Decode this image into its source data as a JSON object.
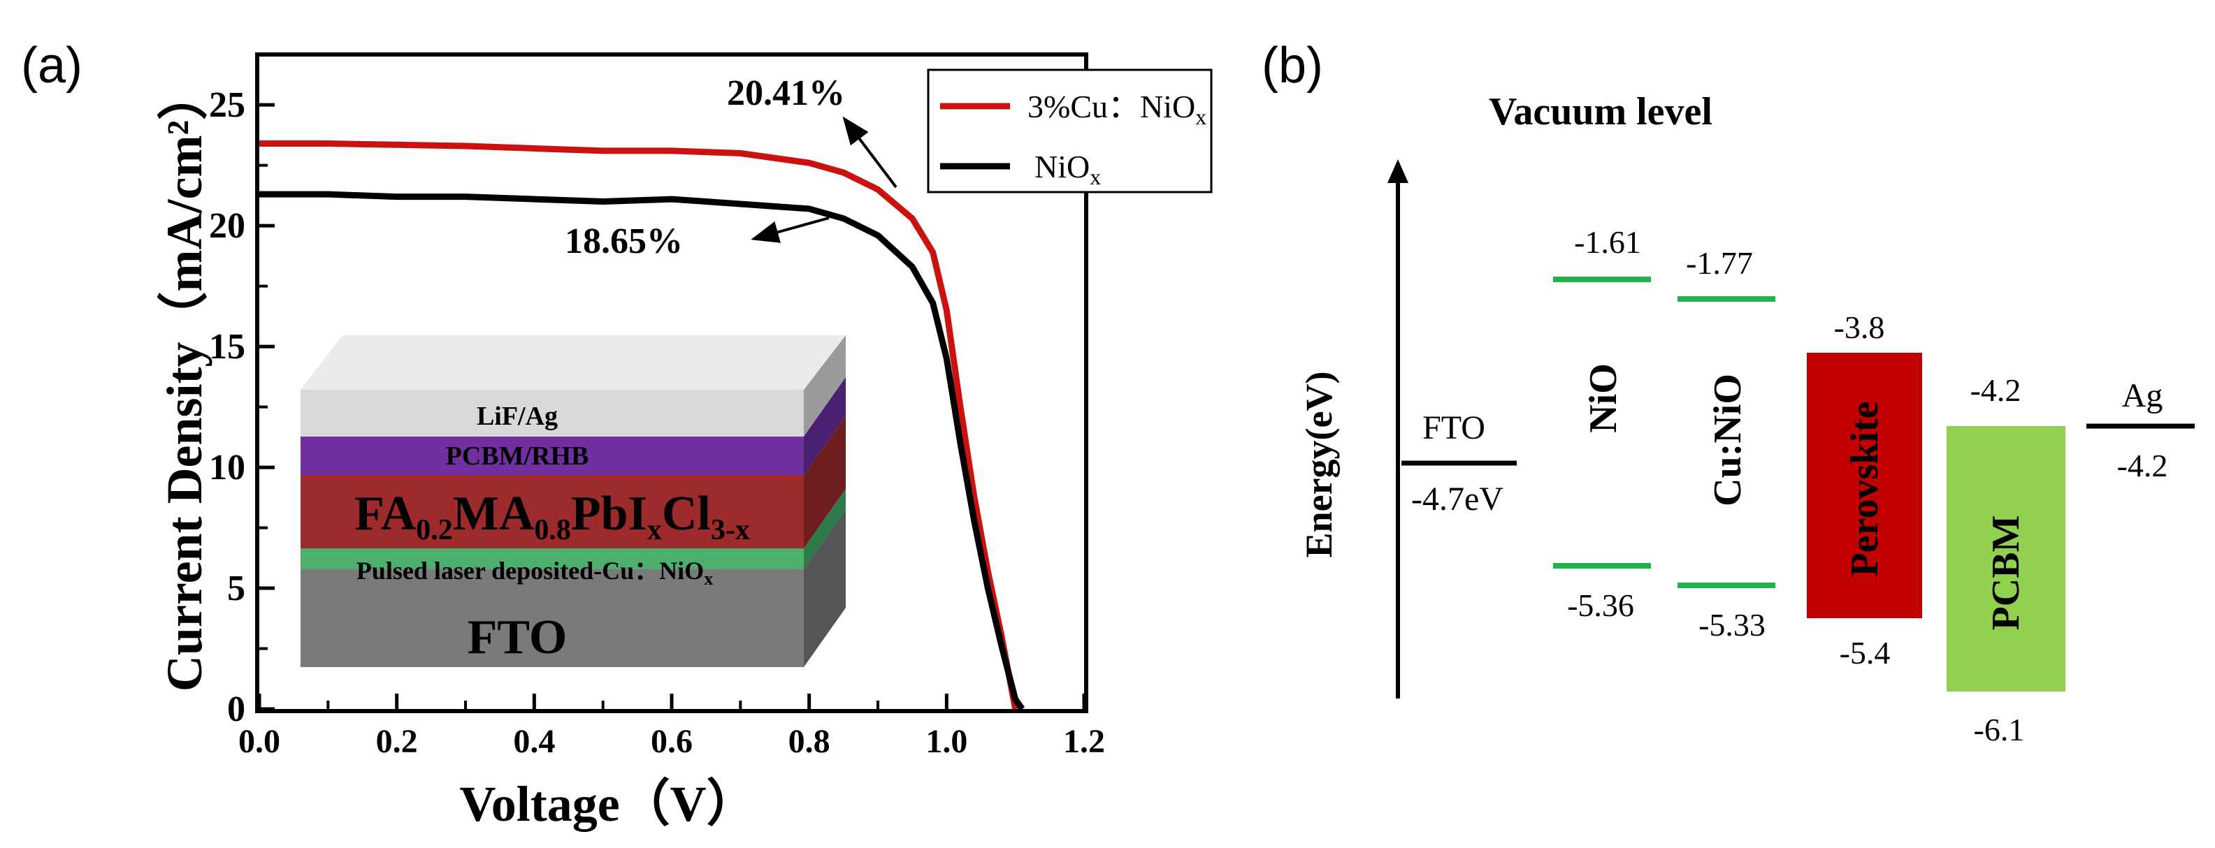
{
  "panel_a": {
    "label": "(a)",
    "chart_data": {
      "type": "line",
      "xlabel": "Voltage（V）",
      "ylabel": "Current Density（mA/cm²）",
      "xlim": [
        0,
        1.2
      ],
      "ylim": [
        0,
        27
      ],
      "x_ticks": [
        "0.0",
        "0.2",
        "0.4",
        "0.6",
        "0.8",
        "1.0",
        "1.2"
      ],
      "y_ticks": [
        "0",
        "5",
        "10",
        "15",
        "20",
        "25"
      ],
      "legend_position": "top-right",
      "series": [
        {
          "name": "3%Cu：NiOx",
          "legend_main": "3%Cu：NiO",
          "legend_sub": "x",
          "color": "#cc1111",
          "efficiency_label": "20.41%",
          "x": [
            0.0,
            0.1,
            0.2,
            0.3,
            0.4,
            0.5,
            0.6,
            0.7,
            0.8,
            0.85,
            0.9,
            0.95,
            0.98,
            1.0,
            1.02,
            1.04,
            1.06,
            1.08,
            1.1
          ],
          "y": [
            23.4,
            23.4,
            23.35,
            23.3,
            23.2,
            23.1,
            23.1,
            23.0,
            22.6,
            22.2,
            21.5,
            20.3,
            18.9,
            16.5,
            12.5,
            8.8,
            5.7,
            3.0,
            0.0
          ]
        },
        {
          "name": "NiOx",
          "legend_main": "NiO",
          "legend_sub": "x",
          "color": "#000000",
          "efficiency_label": "18.65%",
          "x": [
            0.0,
            0.1,
            0.2,
            0.3,
            0.4,
            0.5,
            0.6,
            0.7,
            0.8,
            0.85,
            0.9,
            0.95,
            0.98,
            1.0,
            1.02,
            1.04,
            1.06,
            1.08,
            1.1,
            1.11
          ],
          "y": [
            21.3,
            21.3,
            21.2,
            21.2,
            21.1,
            21.0,
            21.1,
            20.9,
            20.7,
            20.3,
            19.6,
            18.3,
            16.8,
            14.5,
            11.0,
            7.8,
            5.0,
            2.6,
            0.4,
            0.0
          ]
        }
      ]
    },
    "inset_layers": [
      {
        "text": "LiF/Ag"
      },
      {
        "text": "PCBM/RHB"
      },
      {
        "main1": "FA",
        "sub1": "0.2",
        "main2": "MA",
        "sub2": "0.8",
        "main3": "PbI",
        "sub3": "x",
        "main4": "Cl",
        "sub4": "3-x"
      },
      {
        "main": "Pulsed laser deposited-Cu：NiO",
        "sub": "x"
      },
      {
        "text": "FTO"
      }
    ],
    "colors": {
      "lif_front": "#d9d9d9",
      "pcbm_front": "#7030a0",
      "perov_front": "#9e2b2b",
      "cunio_front": "#4caf6e",
      "fto_front": "#7a7a7a"
    }
  },
  "panel_b": {
    "label": "(b)",
    "vacuum_level": "Vacuum level",
    "y_axis_label": "Energy(eV)",
    "fto": {
      "name": "FTO",
      "value": "-4.7eV"
    },
    "nio": {
      "name": "NiO",
      "top": "-1.61",
      "bottom": "-5.36"
    },
    "cunio": {
      "name": "Cu:NiO",
      "top": "-1.77",
      "bottom": "-5.33"
    },
    "perovskite": {
      "name": "Perovskite",
      "top": "-3.8",
      "bottom": "-5.4",
      "color": "#c00000"
    },
    "pcbm": {
      "name": "PCBM",
      "top": "-4.2",
      "bottom": "-6.1",
      "color": "#92d050"
    },
    "ag": {
      "name": "Ag",
      "value": "-4.2"
    },
    "level_color": "#1fb34a"
  }
}
